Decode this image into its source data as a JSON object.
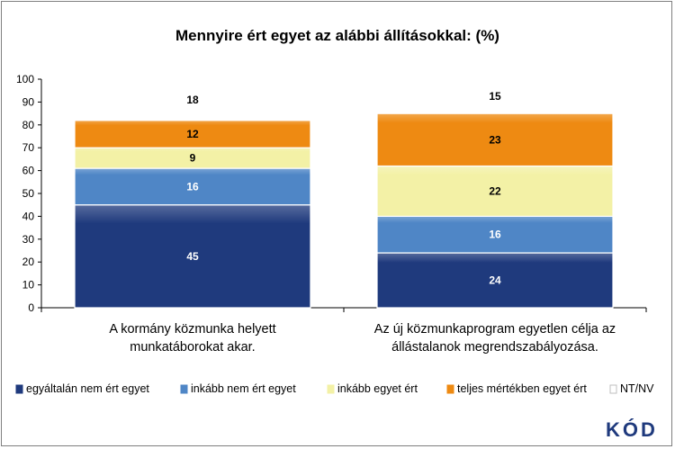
{
  "chart_data": {
    "type": "bar",
    "stacked": true,
    "title": "Mennyire ért egyet az alábbi állításokkal: (%)",
    "categories": [
      [
        "A kormány közmunka helyett",
        "munkatáborokat akar."
      ],
      [
        "Az új közmunkaprogram egyetlen célja az",
        "állástalanok megrendszabályozása."
      ]
    ],
    "series": [
      {
        "name": "egyáltalán nem ért egyet",
        "values": [
          45,
          24
        ],
        "color": "#1f3a7d",
        "label_color": "#ffffff"
      },
      {
        "name": "inkább nem ért egyet",
        "values": [
          16,
          16
        ],
        "color": "#4f86c6",
        "label_color": "#ffffff"
      },
      {
        "name": "inkább egyet ért",
        "values": [
          9,
          22
        ],
        "color": "#f3f1a6",
        "label_color": "#000000"
      },
      {
        "name": "teljes mértékben egyet ért",
        "values": [
          12,
          23
        ],
        "color": "#ee8a12",
        "label_color": "#000000"
      },
      {
        "name": "NT/NV",
        "values": [
          18,
          15
        ],
        "color": "#ffffff",
        "label_color": "#000000"
      }
    ],
    "yticks": [
      0,
      10,
      20,
      30,
      40,
      50,
      60,
      70,
      80,
      90,
      100
    ],
    "ylim": [
      0,
      100
    ],
    "grid": false,
    "legend_position": "bottom"
  },
  "logo": {
    "text": "KÓD"
  }
}
